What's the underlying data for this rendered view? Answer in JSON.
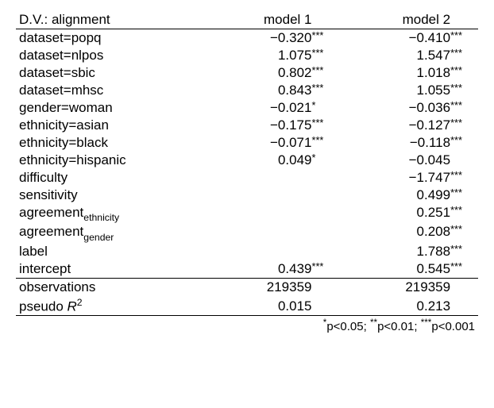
{
  "header": {
    "dv": "D.V.: alignment",
    "m1": "model 1",
    "m2": "model 2"
  },
  "rows": [
    {
      "label_pre": "dataset=popq",
      "label_sub": "",
      "label_post": "",
      "v1": "−0.320",
      "s1": "***",
      "v2": "−0.410",
      "s2": "***"
    },
    {
      "label_pre": "dataset=nlpos",
      "label_sub": "",
      "label_post": "",
      "v1": "1.075",
      "s1": "***",
      "v2": "1.547",
      "s2": "***"
    },
    {
      "label_pre": "dataset=sbic",
      "label_sub": "",
      "label_post": "",
      "v1": "0.802",
      "s1": "***",
      "v2": "1.018",
      "s2": "***"
    },
    {
      "label_pre": "dataset=mhsc",
      "label_sub": "",
      "label_post": "",
      "v1": "0.843",
      "s1": "***",
      "v2": "1.055",
      "s2": "***"
    },
    {
      "label_pre": "gender=woman",
      "label_sub": "",
      "label_post": "",
      "v1": "−0.021",
      "s1": "*",
      "v2": "−0.036",
      "s2": "***"
    },
    {
      "label_pre": "ethnicity=asian",
      "label_sub": "",
      "label_post": "",
      "v1": "−0.175",
      "s1": "***",
      "v2": "−0.127",
      "s2": "***"
    },
    {
      "label_pre": "ethnicity=black",
      "label_sub": "",
      "label_post": "",
      "v1": "−0.071",
      "s1": "***",
      "v2": "−0.118",
      "s2": "***"
    },
    {
      "label_pre": "ethnicity=hispanic",
      "label_sub": "",
      "label_post": "",
      "v1": "0.049",
      "s1": "*",
      "v2": "−0.045",
      "s2": ""
    },
    {
      "label_pre": "difficulty",
      "label_sub": "",
      "label_post": "",
      "v1": "",
      "s1": "",
      "v2": "−1.747",
      "s2": "***"
    },
    {
      "label_pre": "sensitivity",
      "label_sub": "",
      "label_post": "",
      "v1": "",
      "s1": "",
      "v2": "0.499",
      "s2": "***"
    },
    {
      "label_pre": "agreement",
      "label_sub": "ethnicity",
      "label_post": "",
      "v1": "",
      "s1": "",
      "v2": "0.251",
      "s2": "***"
    },
    {
      "label_pre": "agreement",
      "label_sub": "gender",
      "label_post": "",
      "v1": "",
      "s1": "",
      "v2": "0.208",
      "s2": "***"
    },
    {
      "label_pre": "label",
      "label_sub": "",
      "label_post": "",
      "v1": "",
      "s1": "",
      "v2": "1.788",
      "s2": "***"
    },
    {
      "label_pre": "intercept",
      "label_sub": "",
      "label_post": "",
      "v1": "0.439",
      "s1": "***",
      "v2": "0.545",
      "s2": "***"
    }
  ],
  "footer": [
    {
      "label_pre": "observations",
      "label_sub": "",
      "label_post": "",
      "v1": "219359",
      "s1": "",
      "v2": "219359",
      "s2": ""
    },
    {
      "label_pre": "pseudo ",
      "label_sub": "",
      "label_post": "R",
      "label_sup": "2",
      "v1": "0.015",
      "s1": "",
      "v2": "0.213",
      "s2": ""
    }
  ],
  "legend": {
    "p1": "p<0.05; ",
    "p2": "p<0.01; ",
    "p3": "p<0.001"
  }
}
